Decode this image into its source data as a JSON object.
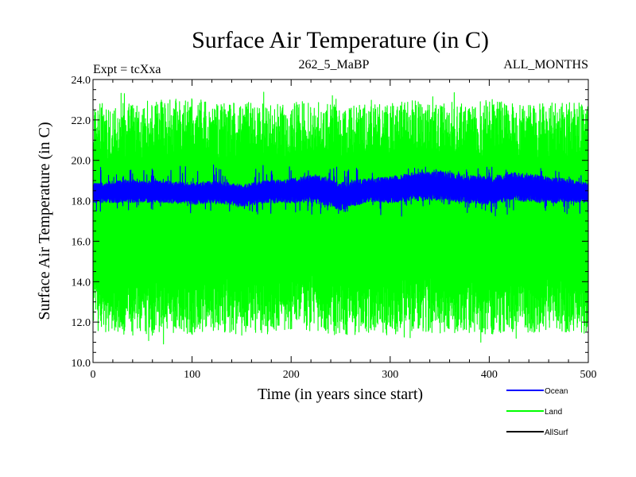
{
  "chart_data": {
    "type": "line",
    "title": "Surface Air Temperature (in C)",
    "subtitle_left": "Expt = tcXxa",
    "subtitle_center": "262_5_MaBP",
    "subtitle_right": "ALL_MONTHS",
    "xlabel": "Time (in years since start)",
    "ylabel": "Surface Air Temperature (in C)",
    "xlim": [
      0,
      500
    ],
    "ylim": [
      10.0,
      24.0
    ],
    "xticks": [
      0,
      100,
      200,
      300,
      400,
      500
    ],
    "yticks": [
      "10.0",
      "12.0",
      "14.0",
      "16.0",
      "18.0",
      "20.0",
      "22.0",
      "24.0"
    ],
    "grid": false,
    "legend_position": "bottom-right",
    "series": [
      {
        "name": "Land",
        "color": "#00ff00",
        "x": [
          0,
          25,
          50,
          75,
          100,
          125,
          150,
          175,
          200,
          225,
          250,
          275,
          300,
          325,
          350,
          375,
          400,
          425,
          450,
          475,
          500
        ],
        "lower": [
          11.6,
          11.4,
          11.2,
          11.5,
          11.4,
          11.6,
          11.3,
          11.5,
          11.4,
          11.6,
          11.2,
          11.5,
          11.3,
          11.6,
          11.4,
          11.5,
          11.3,
          11.6,
          11.4,
          11.5,
          11.4
        ],
        "upper": [
          22.8,
          22.9,
          22.7,
          23.0,
          23.1,
          22.8,
          22.9,
          22.8,
          23.0,
          22.9,
          22.7,
          22.9,
          22.8,
          23.0,
          22.9,
          22.8,
          23.0,
          22.9,
          22.8,
          22.9,
          22.8
        ],
        "min": 10.8,
        "max": 23.6
      },
      {
        "name": "Ocean",
        "color": "#0000ff",
        "x": [
          0,
          25,
          50,
          75,
          100,
          125,
          150,
          175,
          200,
          225,
          250,
          275,
          300,
          325,
          350,
          375,
          400,
          425,
          450,
          475,
          500
        ],
        "lower": [
          17.9,
          17.9,
          17.9,
          17.9,
          17.8,
          17.9,
          17.7,
          17.9,
          17.9,
          17.9,
          17.5,
          17.9,
          17.9,
          18.0,
          18.0,
          17.9,
          17.8,
          18.0,
          17.9,
          17.9,
          17.9
        ],
        "upper": [
          18.9,
          19.0,
          19.0,
          19.0,
          18.9,
          19.0,
          18.8,
          19.0,
          19.1,
          19.3,
          18.9,
          19.1,
          19.2,
          19.4,
          19.5,
          19.3,
          19.2,
          19.4,
          19.3,
          19.1,
          18.9
        ],
        "min": 17.2,
        "max": 19.8
      },
      {
        "name": "AllSurf",
        "color": "#000000",
        "x": [],
        "lower": [],
        "upper": []
      }
    ]
  }
}
